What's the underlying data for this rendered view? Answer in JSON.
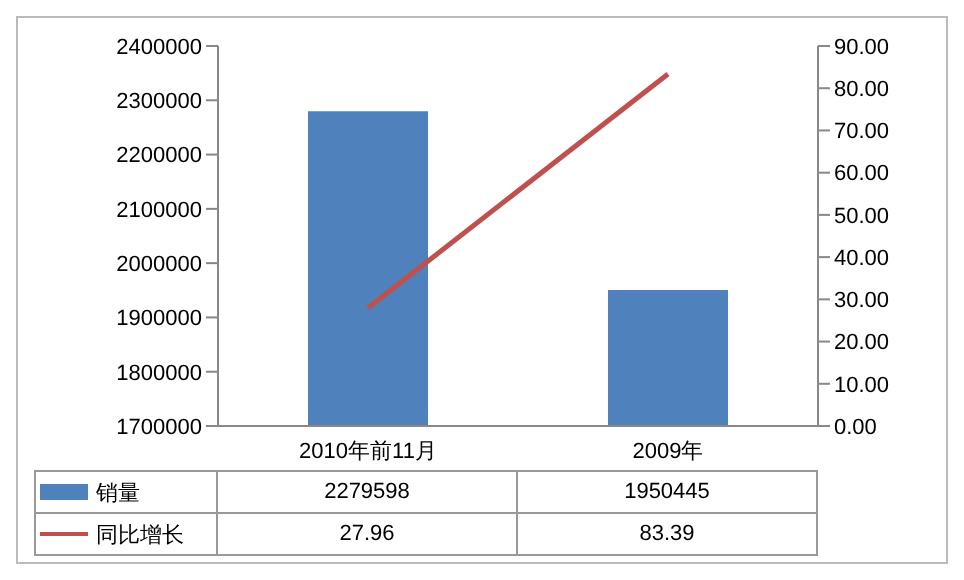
{
  "chart_data": {
    "type": "bar",
    "categories": [
      "2010年前11月",
      "2009年"
    ],
    "series": [
      {
        "name": "销量",
        "color": "#4f81bd",
        "values": [
          2279598,
          1950445
        ]
      },
      {
        "name": "同比增长",
        "type": "line",
        "color": "#c0504d",
        "axis": "y2",
        "values": [
          27.96,
          83.39
        ]
      }
    ],
    "ylim": [
      1700000,
      2400000
    ],
    "yticks": [
      1700000,
      1800000,
      1900000,
      2000000,
      2100000,
      2200000,
      2300000,
      2400000
    ],
    "y2lim": [
      0,
      90
    ],
    "y2ticks": [
      {
        "value": 0,
        "label": "0.00"
      },
      {
        "value": 10,
        "label": "10.00"
      },
      {
        "value": 20,
        "label": "20.00"
      },
      {
        "value": 30,
        "label": "30.00"
      },
      {
        "value": 40,
        "label": "40.00"
      },
      {
        "value": 50,
        "label": "50.00"
      },
      {
        "value": 60,
        "label": "60.00"
      },
      {
        "value": 70,
        "label": "70.00"
      },
      {
        "value": 80,
        "label": "80.00"
      },
      {
        "value": 90,
        "label": "90.00"
      }
    ],
    "data_labels": true,
    "legend": "bottom",
    "grid": false,
    "marker": "none",
    "line_style": "solid"
  }
}
